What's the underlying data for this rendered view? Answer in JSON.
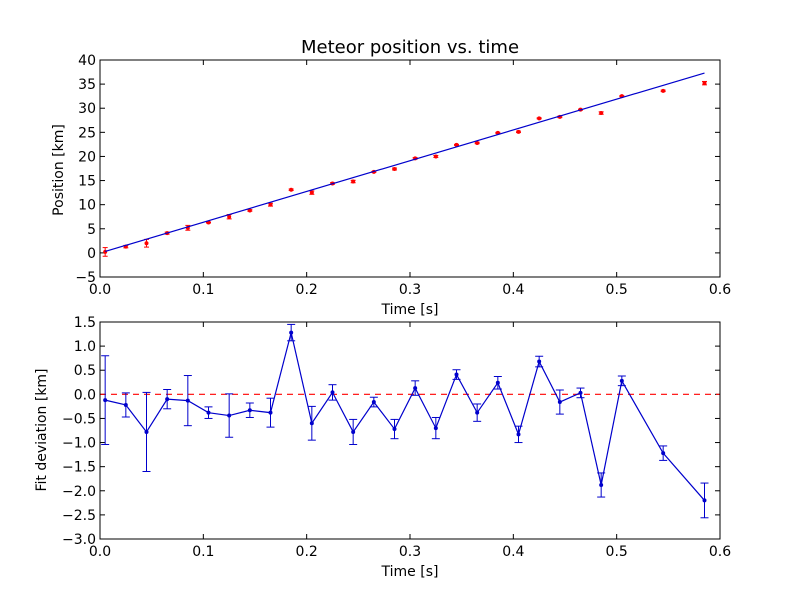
{
  "chart_data": [
    {
      "type": "scatter",
      "title": "Meteor position vs. time",
      "xlabel": "Time [s]",
      "ylabel": "Position [km]",
      "xlim": [
        0.0,
        0.6
      ],
      "ylim": [
        -5,
        40
      ],
      "xticks": [
        "0.0",
        "0.1",
        "0.2",
        "0.3",
        "0.4",
        "0.5",
        "0.6"
      ],
      "yticks": [
        "−5",
        "0",
        "5",
        "10",
        "15",
        "20",
        "25",
        "30",
        "35",
        "40"
      ],
      "grid": false,
      "series": [
        {
          "kind": "errorbar-points",
          "color": "#ff0000",
          "x": [
            0.005,
            0.025,
            0.045,
            0.065,
            0.085,
            0.105,
            0.125,
            0.145,
            0.165,
            0.185,
            0.205,
            0.225,
            0.245,
            0.265,
            0.285,
            0.305,
            0.325,
            0.345,
            0.365,
            0.385,
            0.405,
            0.425,
            0.445,
            0.465,
            0.485,
            0.505,
            0.545,
            0.585
          ],
          "y": [
            0.2,
            1.3,
            2.0,
            4.1,
            5.2,
            6.3,
            7.5,
            8.8,
            10.0,
            13.1,
            12.5,
            14.4,
            14.8,
            16.8,
            17.4,
            19.6,
            20.0,
            22.4,
            22.8,
            24.9,
            25.1,
            27.9,
            28.2,
            29.7,
            29.0,
            32.5,
            33.6,
            35.2
          ],
          "yerr": [
            0.9,
            0.25,
            0.8,
            0.2,
            0.5,
            0.1,
            0.45,
            0.15,
            0.3,
            0.15,
            0.35,
            0.15,
            0.25,
            0.1,
            0.2,
            0.15,
            0.2,
            0.1,
            0.15,
            0.1,
            0.15,
            0.1,
            0.15,
            0.1,
            0.25,
            0.1,
            0.15,
            0.35
          ]
        },
        {
          "kind": "fit-line",
          "color": "#0000cc",
          "x": [
            0.005,
            0.585
          ],
          "y": [
            0.3,
            37.3
          ]
        }
      ]
    },
    {
      "type": "line",
      "xlabel": "Time [s]",
      "ylabel": "Fit deviation [km]",
      "xlim": [
        0.0,
        0.6
      ],
      "ylim": [
        -3.0,
        1.5
      ],
      "xticks": [
        "0.0",
        "0.1",
        "0.2",
        "0.3",
        "0.4",
        "0.5",
        "0.6"
      ],
      "yticks": [
        "−3.0",
        "−2.5",
        "−2.0",
        "−1.5",
        "−1.0",
        "−0.5",
        "0.0",
        "0.5",
        "1.0",
        "1.5"
      ],
      "grid": false,
      "zero_line": {
        "y": 0.0,
        "color": "#ff0000",
        "style": "dashed"
      },
      "series": [
        {
          "kind": "errorbar-line",
          "color": "#0000cc",
          "x": [
            0.005,
            0.025,
            0.045,
            0.065,
            0.085,
            0.105,
            0.125,
            0.145,
            0.165,
            0.185,
            0.205,
            0.225,
            0.245,
            0.265,
            0.285,
            0.305,
            0.325,
            0.345,
            0.365,
            0.385,
            0.405,
            0.425,
            0.445,
            0.465,
            0.485,
            0.505,
            0.545,
            0.585
          ],
          "y": [
            -0.12,
            -0.22,
            -0.78,
            -0.1,
            -0.13,
            -0.38,
            -0.44,
            -0.33,
            -0.38,
            1.28,
            -0.6,
            0.04,
            -0.78,
            -0.16,
            -0.72,
            0.13,
            -0.7,
            0.41,
            -0.38,
            0.24,
            -0.83,
            0.68,
            -0.16,
            0.03,
            -1.88,
            0.28,
            -1.22,
            -2.2
          ],
          "yerr": [
            0.92,
            0.25,
            0.82,
            0.2,
            0.52,
            0.12,
            0.45,
            0.15,
            0.3,
            0.17,
            0.35,
            0.16,
            0.26,
            0.1,
            0.2,
            0.15,
            0.22,
            0.1,
            0.18,
            0.13,
            0.17,
            0.11,
            0.25,
            0.1,
            0.25,
            0.1,
            0.15,
            0.36
          ]
        }
      ]
    }
  ]
}
